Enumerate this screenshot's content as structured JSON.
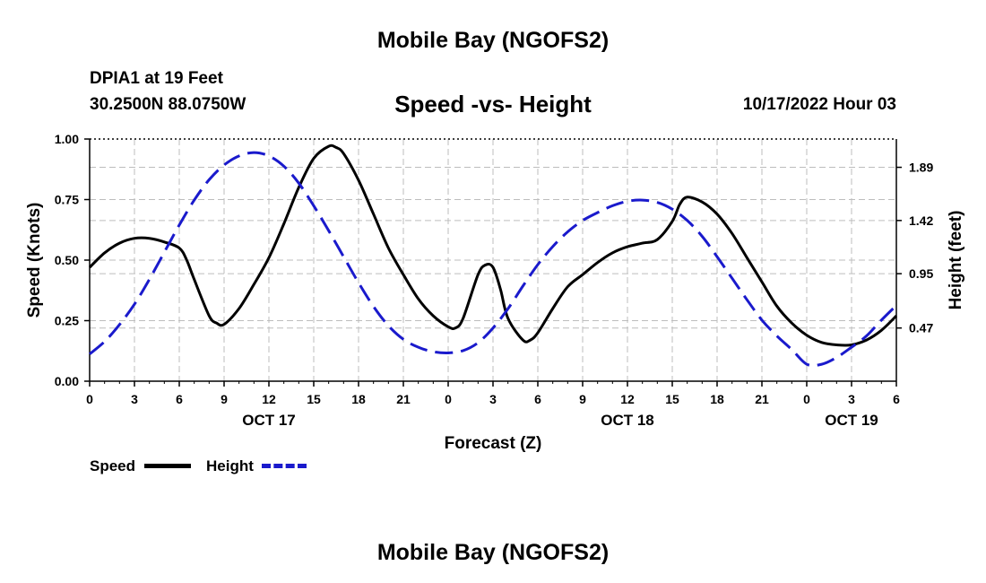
{
  "header": {
    "title": "Mobile Bay (NGOFS2)",
    "station": "DPIA1 at 19 Feet",
    "coords": "30.2500N  88.0750W",
    "valid_time": "10/17/2022 Hour 03",
    "footer_title": "Mobile Bay (NGOFS2)"
  },
  "legend": {
    "speed": "Speed",
    "height": "Height"
  },
  "colors": {
    "speed": "#000000",
    "height": "#1a1acc",
    "grid": "#bdbdbd"
  },
  "chart_data": {
    "type": "line",
    "title": "Speed -vs- Height",
    "xlabel": "Forecast (Z)",
    "ylabel": "Speed (Knots)",
    "y2label": "Height (feet)",
    "x_unit": "forecast hours from 10/17/2022 00Z",
    "xlim": [
      0,
      54
    ],
    "ylim": [
      0,
      1.0
    ],
    "y2lim": [
      0,
      2.14
    ],
    "x_ticks": [
      0,
      3,
      6,
      9,
      12,
      15,
      18,
      21,
      24,
      27,
      30,
      33,
      36,
      39,
      42,
      45,
      48,
      51,
      54
    ],
    "x_tick_labels": [
      "0",
      "3",
      "6",
      "9",
      "12",
      "15",
      "18",
      "21",
      "0",
      "3",
      "6",
      "9",
      "12",
      "15",
      "18",
      "21",
      "0",
      "3",
      "6"
    ],
    "date_labels": [
      {
        "x": 12,
        "label": "OCT 17"
      },
      {
        "x": 36,
        "label": "OCT 18"
      },
      {
        "x": 51,
        "label": "OCT 19"
      }
    ],
    "y_ticks": [
      0,
      0.25,
      0.5,
      0.75,
      1.0
    ],
    "y_tick_labels": [
      "0.00",
      "0.25",
      "0.50",
      "0.75",
      "1.00"
    ],
    "y2_ticks": [
      0.47,
      0.95,
      1.42,
      1.89
    ],
    "y2_tick_labels": [
      "0.47",
      "0.95",
      "1.42",
      "1.89"
    ],
    "series": [
      {
        "name": "Speed",
        "axis": "left",
        "style": "solid",
        "x": [
          0,
          1,
          2,
          3,
          4,
          5,
          6,
          6.5,
          7,
          8,
          8.5,
          9,
          10,
          11,
          12,
          13,
          14,
          15,
          16,
          16.5,
          17,
          18,
          19,
          20,
          21,
          22,
          23,
          24,
          24.5,
          25,
          26,
          26.5,
          27,
          27.5,
          28,
          29,
          29.5,
          30,
          31,
          32,
          33,
          34,
          35,
          36,
          37,
          38,
          39,
          39.5,
          40,
          41,
          42,
          43,
          44,
          45,
          46,
          47,
          48,
          49,
          50,
          51,
          52,
          53,
          54
        ],
        "y": [
          0.47,
          0.53,
          0.57,
          0.59,
          0.59,
          0.575,
          0.55,
          0.5,
          0.42,
          0.27,
          0.24,
          0.235,
          0.3,
          0.4,
          0.51,
          0.65,
          0.8,
          0.92,
          0.97,
          0.965,
          0.94,
          0.83,
          0.69,
          0.55,
          0.44,
          0.34,
          0.27,
          0.225,
          0.22,
          0.26,
          0.44,
          0.48,
          0.47,
          0.38,
          0.26,
          0.17,
          0.17,
          0.2,
          0.3,
          0.39,
          0.44,
          0.49,
          0.53,
          0.555,
          0.57,
          0.585,
          0.66,
          0.73,
          0.76,
          0.74,
          0.69,
          0.61,
          0.51,
          0.41,
          0.31,
          0.24,
          0.19,
          0.16,
          0.15,
          0.15,
          0.17,
          0.21,
          0.27
        ]
      },
      {
        "name": "Height",
        "axis": "right",
        "style": "dashed",
        "x": [
          0,
          1,
          2,
          3,
          4,
          5,
          6,
          7,
          8,
          9,
          10,
          11,
          12,
          13,
          14,
          15,
          16,
          17,
          18,
          19,
          20,
          21,
          22,
          23,
          24,
          25,
          26,
          27,
          28,
          29,
          30,
          31,
          32,
          33,
          34,
          35,
          36,
          37,
          38,
          39,
          40,
          41,
          42,
          43,
          44,
          45,
          46,
          47,
          48,
          49,
          50,
          51,
          52,
          53,
          54
        ],
        "y": [
          0.24,
          0.35,
          0.5,
          0.68,
          0.9,
          1.14,
          1.38,
          1.6,
          1.78,
          1.91,
          1.99,
          2.02,
          1.99,
          1.9,
          1.75,
          1.55,
          1.33,
          1.1,
          0.87,
          0.66,
          0.49,
          0.37,
          0.3,
          0.26,
          0.25,
          0.27,
          0.34,
          0.47,
          0.64,
          0.84,
          1.03,
          1.19,
          1.32,
          1.42,
          1.49,
          1.55,
          1.59,
          1.6,
          1.58,
          1.52,
          1.42,
          1.28,
          1.1,
          0.91,
          0.72,
          0.54,
          0.4,
          0.28,
          0.15,
          0.15,
          0.21,
          0.3,
          0.4,
          0.54,
          0.67
        ]
      }
    ]
  }
}
